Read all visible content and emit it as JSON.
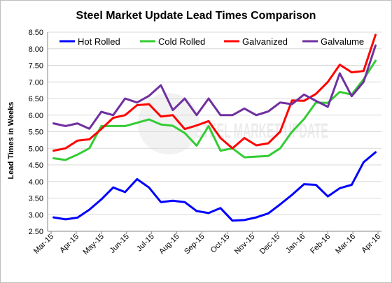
{
  "chart_data": {
    "type": "line",
    "title": "Steel Market Update Lead Times Comparison",
    "ylabel": "Lead Times in Weeks",
    "xlabel": "",
    "ylim": [
      2.5,
      8.5
    ],
    "yticks": [
      "2.50",
      "3.00",
      "3.50",
      "4.00",
      "4.50",
      "5.00",
      "5.50",
      "6.00",
      "6.50",
      "7.00",
      "7.50",
      "8.00",
      "8.50"
    ],
    "x_tick_labels": [
      "Mar-15",
      "Apr-15",
      "May-15",
      "Jun-15",
      "Jul-15",
      "Aug-15",
      "Sep-15",
      "Oct-15",
      "Nov-15",
      "Dec-15",
      "Jan-16",
      "Feb-16",
      "Mar-16",
      "Apr-16"
    ],
    "grid": true,
    "legend_position": "top",
    "watermark": "STEEL MARKET UPDATE",
    "series": [
      {
        "name": "Hot Rolled",
        "color": "#0000ff",
        "values": [
          2.92,
          2.86,
          2.91,
          3.15,
          3.46,
          3.82,
          3.68,
          4.07,
          3.82,
          3.38,
          3.42,
          3.38,
          3.11,
          3.05,
          3.2,
          2.82,
          2.84,
          2.92,
          3.04,
          3.31,
          3.6,
          3.92,
          3.9,
          3.55,
          3.8,
          3.9,
          4.58,
          4.88
        ]
      },
      {
        "name": "Cold Rolled",
        "color": "#33cc33",
        "values": [
          4.7,
          4.65,
          4.81,
          5.0,
          5.67,
          5.67,
          5.67,
          5.77,
          5.87,
          5.72,
          5.68,
          5.46,
          5.08,
          5.67,
          4.93,
          5.0,
          4.73,
          4.75,
          4.77,
          5.0,
          5.5,
          5.88,
          6.38,
          6.37,
          6.7,
          6.62,
          7.08,
          7.64
        ]
      },
      {
        "name": "Galvanized",
        "color": "#ff0000",
        "values": [
          4.93,
          5.0,
          5.23,
          5.27,
          5.58,
          5.92,
          6.0,
          6.3,
          6.33,
          5.96,
          6.0,
          5.58,
          5.69,
          5.82,
          5.31,
          5.0,
          5.31,
          5.09,
          5.15,
          5.5,
          6.44,
          6.43,
          6.64,
          7.0,
          7.52,
          7.29,
          7.33,
          8.42
        ]
      },
      {
        "name": "Galvalume",
        "color": "#7030a0",
        "values": [
          5.75,
          5.67,
          5.75,
          5.59,
          6.1,
          6.0,
          6.5,
          6.38,
          6.58,
          6.9,
          6.15,
          6.5,
          6.0,
          6.5,
          6.0,
          6.0,
          6.2,
          6.0,
          6.11,
          6.38,
          6.33,
          6.62,
          6.43,
          6.25,
          7.26,
          6.57,
          7.0,
          8.1
        ]
      }
    ]
  }
}
